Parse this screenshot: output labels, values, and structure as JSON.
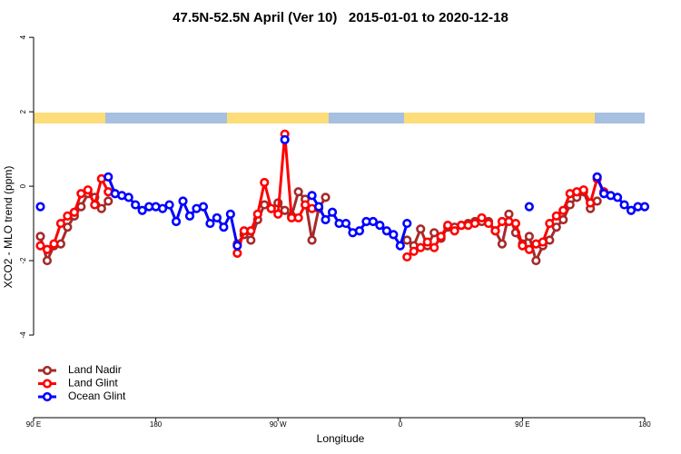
{
  "chart_data": {
    "type": "line",
    "title": "47.5N-52.5N April (Ver 10)   2015-01-01 to 2020-12-18",
    "xlabel": "Longitude",
    "ylabel": "XCO2 - MLO trend (ppm)",
    "xlim": [
      90,
      540
    ],
    "xticks": [
      {
        "value": 90,
        "label": "90 E"
      },
      {
        "value": 180,
        "label": "180"
      },
      {
        "value": 270,
        "label": "90 W"
      },
      {
        "value": 360,
        "label": "0"
      },
      {
        "value": 450,
        "label": "90 E"
      },
      {
        "value": 540,
        "label": "180"
      }
    ],
    "ylim": [
      -6.22,
      4.15
    ],
    "yticks": [
      -4,
      -2,
      0,
      2,
      4
    ],
    "legend": "bottom-left",
    "series": [
      {
        "name": "Land Nadir",
        "color": "#a52a2a",
        "x": [
          95,
          100,
          105,
          110,
          115,
          120,
          125,
          130,
          135,
          140,
          145,
          150,
          240,
          245,
          250,
          255,
          260,
          265,
          270,
          275,
          280,
          285,
          290,
          295,
          300,
          305,
          310,
          365,
          370,
          375,
          380,
          385,
          390,
          395,
          400,
          405,
          410,
          415,
          420,
          425,
          430,
          435,
          440,
          445,
          450,
          455,
          460,
          465,
          470,
          475,
          480,
          485,
          490,
          495,
          500,
          505
        ],
        "values": [
          -1.35,
          -2.0,
          -1.6,
          -1.55,
          -1.1,
          -0.8,
          -0.55,
          -0.2,
          -0.3,
          -0.6,
          -0.4,
          null,
          -1.55,
          -1.3,
          -1.45,
          -0.9,
          -0.5,
          -0.6,
          -0.45,
          -0.65,
          -0.8,
          -0.15,
          -0.35,
          -1.45,
          -0.6,
          -0.3,
          null,
          -1.45,
          -1.6,
          -1.15,
          -1.6,
          -1.25,
          -1.4,
          -1.1,
          -1.1,
          -1.05,
          -1.0,
          -0.95,
          -0.95,
          -0.95,
          -1.2,
          -1.55,
          -0.75,
          -1.25,
          -1.55,
          -1.35,
          -2.0,
          -1.6,
          -1.45,
          -1.1,
          -0.9,
          -0.5,
          -0.3,
          -0.15,
          -0.6,
          -0.4
        ]
      },
      {
        "name": "Land Glint",
        "color": "#ff0000",
        "x": [
          95,
          100,
          105,
          110,
          115,
          120,
          125,
          130,
          135,
          140,
          145,
          150,
          240,
          245,
          250,
          255,
          260,
          265,
          270,
          275,
          280,
          285,
          290,
          295,
          300,
          365,
          370,
          375,
          380,
          385,
          390,
          395,
          400,
          405,
          410,
          415,
          420,
          425,
          430,
          435,
          440,
          445,
          450,
          455,
          460,
          465,
          470,
          475,
          480,
          485,
          490,
          495,
          500,
          505,
          510
        ],
        "values": [
          -1.6,
          -1.7,
          -1.55,
          -1.0,
          -0.8,
          -0.7,
          -0.2,
          -0.1,
          -0.5,
          0.2,
          -0.15,
          null,
          -1.8,
          -1.2,
          -1.2,
          -0.75,
          0.1,
          -0.6,
          -0.75,
          1.4,
          -0.85,
          -0.85,
          -0.5,
          -0.6,
          null,
          -1.9,
          -1.75,
          -1.65,
          -1.5,
          -1.65,
          -1.35,
          -1.05,
          -1.2,
          -1.05,
          -1.05,
          -1.0,
          -0.85,
          -1.0,
          -1.2,
          -0.95,
          -0.95,
          -1.0,
          -1.6,
          -1.7,
          -1.55,
          -1.5,
          -1.0,
          -0.8,
          -0.65,
          -0.2,
          -0.15,
          -0.1,
          -0.45,
          0.2,
          -0.15
        ]
      },
      {
        "name": "Ocean Glint",
        "color": "#0000ff",
        "x": [
          95,
          100,
          145,
          150,
          155,
          160,
          165,
          170,
          175,
          180,
          185,
          190,
          195,
          200,
          205,
          210,
          215,
          220,
          225,
          230,
          235,
          240,
          245,
          275,
          280,
          295,
          300,
          305,
          310,
          315,
          320,
          325,
          330,
          335,
          340,
          345,
          350,
          355,
          360,
          365,
          370,
          455,
          460,
          505,
          510,
          515,
          520,
          525,
          530,
          535,
          540
        ],
        "values": [
          -0.55,
          null,
          0.25,
          -0.2,
          -0.25,
          -0.3,
          -0.5,
          -0.65,
          -0.55,
          -0.55,
          -0.6,
          -0.5,
          -0.95,
          -0.4,
          -0.8,
          -0.6,
          -0.55,
          -1.0,
          -0.85,
          -1.1,
          -0.75,
          -1.6,
          null,
          1.25,
          null,
          -0.25,
          -0.55,
          -0.9,
          -0.7,
          -1.0,
          -1.0,
          -1.25,
          -1.2,
          -0.95,
          -0.95,
          -1.05,
          -1.2,
          -1.3,
          -1.6,
          -1.0,
          null,
          -0.55,
          null,
          0.25,
          -0.2,
          -0.25,
          -0.3,
          -0.5,
          -0.65,
          -0.55,
          -0.55
        ]
      }
    ]
  }
}
